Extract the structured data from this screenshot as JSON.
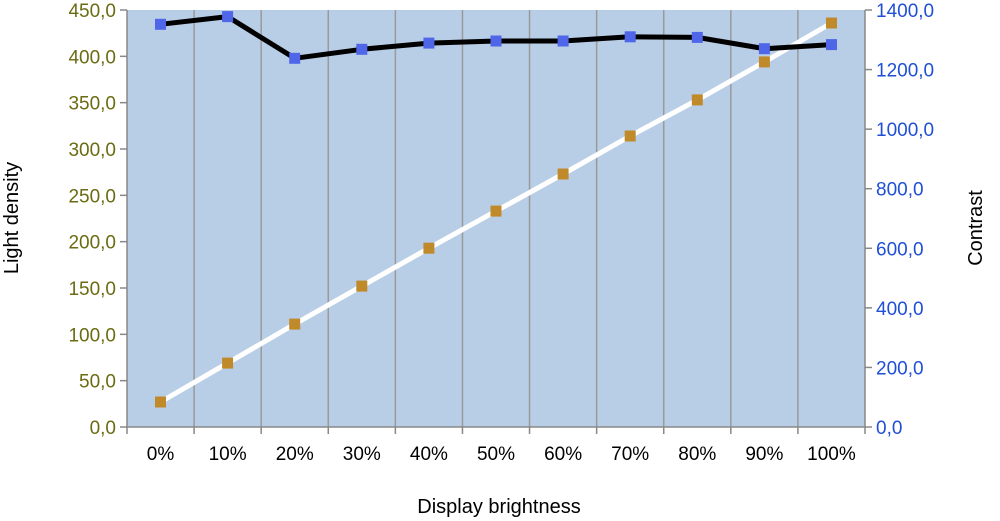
{
  "chart_data": {
    "type": "line",
    "xlabel": "Display brightness",
    "ylabel_left": "Light density",
    "ylabel_right": "Contrast",
    "categories": [
      "0%",
      "10%",
      "20%",
      "30%",
      "40%",
      "50%",
      "60%",
      "70%",
      "80%",
      "90%",
      "100%"
    ],
    "left_axis": {
      "range": [
        0,
        450
      ],
      "ticks": [
        "0,0",
        "50,0",
        "100,0",
        "150,0",
        "200,0",
        "250,0",
        "300,0",
        "350,0",
        "400,0",
        "450,0"
      ],
      "color": "#6b6b12"
    },
    "right_axis": {
      "range": [
        0,
        1400
      ],
      "ticks": [
        "0,0",
        "200,0",
        "400,0",
        "600,0",
        "800,0",
        "1000,0",
        "1200,0",
        "1400,0"
      ],
      "color": "#1f4fd6"
    },
    "series": [
      {
        "axis": "left",
        "values": [
          27,
          69,
          111,
          152,
          193,
          233,
          273,
          314,
          353,
          394,
          436
        ],
        "line_color": "#ffffff",
        "marker_color": "#c08a2a"
      },
      {
        "axis": "right",
        "values": [
          1352,
          1378,
          1238,
          1268,
          1289,
          1296,
          1296,
          1310,
          1308,
          1270,
          1284
        ],
        "line_color": "#000000",
        "marker_color": "#4f66e8"
      }
    ],
    "plot_background": "#b8cde6",
    "gridlines": "vertical",
    "legend": "none"
  }
}
